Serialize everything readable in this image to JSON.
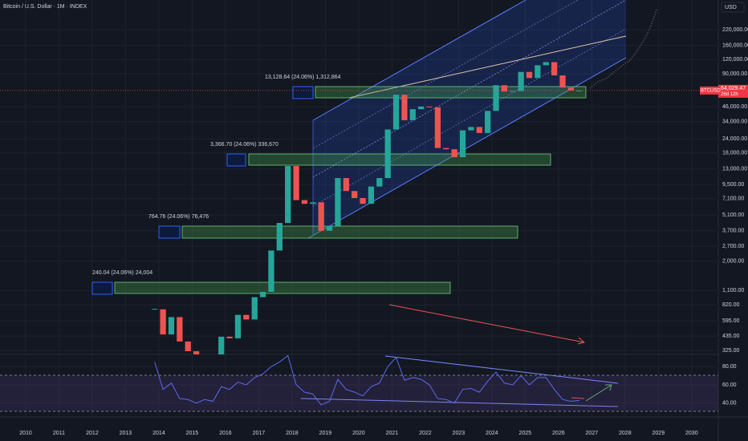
{
  "header": {
    "title": "Bitcoin / U.S. Dollar · 1M · INDEX",
    "currency": "USD"
  },
  "chart_data": [
    {
      "type": "candlestick",
      "log_scale": true,
      "grid": true,
      "up_color": "#26a69a",
      "down_color": "#ef5350",
      "x": [
        2013.875,
        2014.125,
        2014.375,
        2014.625,
        2014.875,
        2015.125,
        2015.375,
        2015.625,
        2015.875,
        2016.125,
        2016.375,
        2016.625,
        2016.875,
        2017.125,
        2017.375,
        2017.625,
        2017.875,
        2018.125,
        2018.375,
        2018.625,
        2018.875,
        2019.125,
        2019.375,
        2019.625,
        2019.875,
        2020.125,
        2020.375,
        2020.625,
        2020.875,
        2021.125,
        2021.375,
        2021.625,
        2021.875,
        2022.125,
        2022.375,
        2022.625,
        2022.875,
        2023.125,
        2023.375,
        2023.625,
        2023.875,
        2024.125,
        2024.375,
        2024.625,
        2024.875,
        2025.125,
        2025.375,
        2025.625,
        2025.875,
        2026.125,
        2026.375,
        2026.625
      ],
      "values": [
        750,
        450,
        640,
        390,
        320,
        245,
        265,
        236,
        430,
        416,
        670,
        610,
        960,
        1070,
        2480,
        4340,
        13800,
        6900,
        6400,
        6600,
        3700,
        4100,
        10800,
        8300,
        7200,
        6400,
        9100,
        10800,
        29000,
        58800,
        35000,
        43800,
        46300,
        45500,
        19900,
        19400,
        16500,
        28500,
        30500,
        27000,
        42300,
        71300,
        62700,
        63300,
        93400,
        82500,
        107000,
        114000,
        87000,
        68000,
        64000,
        64029.47
      ],
      "xlim": [
        2009.23,
        2030.8
      ],
      "xticks": [
        2010,
        2011,
        2012,
        2013,
        2014,
        2015,
        2016,
        2017,
        2018,
        2019,
        2020,
        2021,
        2022,
        2023,
        2024,
        2025,
        2026,
        2027,
        2028,
        2029,
        2030
      ],
      "ylim": [
        300,
        403000
      ],
      "yticks": [
        {
          "value": 220000,
          "label": "220,000.00"
        },
        {
          "value": 160000,
          "label": "160,000.00"
        },
        {
          "value": 120000,
          "label": "120,000.00"
        },
        {
          "value": 90000,
          "label": "90,000.00"
        },
        {
          "value": 46000,
          "label": "46,000.00"
        },
        {
          "value": 34000,
          "label": "34,000.00"
        },
        {
          "value": 24000,
          "label": "24,000.00"
        },
        {
          "value": 18000,
          "label": "18,000.00"
        },
        {
          "value": 13000,
          "label": "13,000.00"
        },
        {
          "value": 9500,
          "label": "9,500.00"
        },
        {
          "value": 7100,
          "label": "7,100.00"
        },
        {
          "value": 5100,
          "label": "5,100.00"
        },
        {
          "value": 3700,
          "label": "3,700.00"
        },
        {
          "value": 2700,
          "label": "2,700.00"
        },
        {
          "value": 2000,
          "label": "2,000.00"
        },
        {
          "value": 1100,
          "label": "1,100.00"
        },
        {
          "value": 820,
          "label": "820.00"
        },
        {
          "value": 595,
          "label": "595.00"
        },
        {
          "value": 435,
          "label": "435.00"
        },
        {
          "value": 325,
          "label": "325.00"
        }
      ],
      "price_tag": {
        "symbol": "BTCUSD",
        "value": 64029.47,
        "label": "64,029.47",
        "countdown": "26d 12h"
      },
      "annotations": [
        "13,128.64 (24.06%) 1,312,864",
        "3,366.70 (24.06%) 336,670",
        "764.76 (24.06%) 76,476",
        "240.04 (24.06%) 24,004"
      ]
    },
    {
      "type": "line",
      "color": "#5b6cf0",
      "values": [
        85,
        55,
        62,
        45,
        44,
        40,
        44,
        42,
        58,
        55,
        63,
        60,
        68,
        72,
        80,
        85,
        92,
        60,
        52,
        50,
        38,
        42,
        66,
        55,
        52,
        48,
        58,
        62,
        80,
        90,
        65,
        68,
        66,
        60,
        45,
        44,
        40,
        55,
        56,
        52,
        64,
        74,
        62,
        60,
        70,
        60,
        68,
        68,
        55,
        44,
        42,
        43
      ],
      "ylim": [
        24.9,
        93.3
      ],
      "yticks": [
        {
          "value": 80,
          "label": "80.00"
        },
        {
          "value": 60,
          "label": "60.00"
        },
        {
          "value": 40,
          "label": "40.00"
        }
      ]
    }
  ]
}
